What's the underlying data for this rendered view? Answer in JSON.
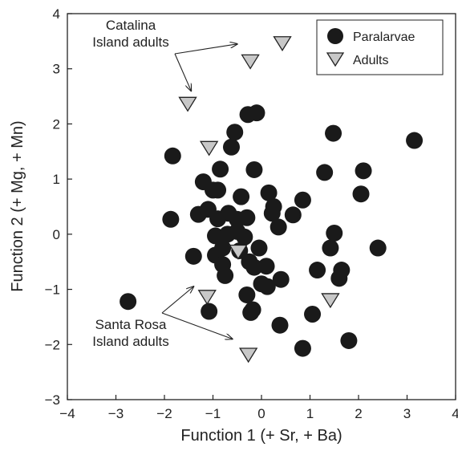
{
  "chart_data": {
    "type": "scatter",
    "title": "",
    "xlabel": "Function 1 (+ Sr, + Ba)",
    "ylabel": "Function 2 (+ Mg, + Mn)",
    "xlim": [
      -4,
      4
    ],
    "ylim": [
      -3,
      4
    ],
    "xticks": [
      "−4",
      "−3",
      "−2",
      "−1",
      "0",
      "1",
      "2",
      "3",
      "4"
    ],
    "yticks": [
      "−3",
      "−2",
      "−1",
      "0",
      "1",
      "2",
      "3",
      "4"
    ],
    "grid": false,
    "legend_position": "top-right",
    "series": [
      {
        "name": "Paralarvae",
        "marker": "circle",
        "color": "#1a1a1a",
        "points": [
          [
            -2.75,
            -1.22
          ],
          [
            -1.83,
            1.42
          ],
          [
            -1.87,
            0.27
          ],
          [
            -1.4,
            -0.4
          ],
          [
            -1.3,
            0.36
          ],
          [
            -1.2,
            0.95
          ],
          [
            -1.1,
            0.45
          ],
          [
            -1.08,
            -1.4
          ],
          [
            -1.0,
            0.8
          ],
          [
            -0.95,
            -0.03
          ],
          [
            -0.9,
            0.28
          ],
          [
            -0.9,
            0.8
          ],
          [
            -0.95,
            -0.38
          ],
          [
            -0.85,
            1.18
          ],
          [
            -0.8,
            -0.25
          ],
          [
            -0.8,
            -0.55
          ],
          [
            -0.75,
            -0.75
          ],
          [
            -0.7,
            0.0
          ],
          [
            -0.68,
            0.38
          ],
          [
            -0.62,
            1.58
          ],
          [
            -0.55,
            1.85
          ],
          [
            -0.5,
            0.05
          ],
          [
            -0.5,
            0.27
          ],
          [
            -0.45,
            -0.3
          ],
          [
            -0.42,
            0.68
          ],
          [
            -0.35,
            -0.05
          ],
          [
            -0.3,
            -1.1
          ],
          [
            -0.3,
            0.3
          ],
          [
            -0.28,
            2.17
          ],
          [
            -0.25,
            -0.5
          ],
          [
            -0.22,
            -1.42
          ],
          [
            -0.18,
            -1.37
          ],
          [
            -0.15,
            -0.6
          ],
          [
            -0.15,
            1.17
          ],
          [
            -0.1,
            2.2
          ],
          [
            -0.05,
            -0.25
          ],
          [
            0.0,
            -0.9
          ],
          [
            0.1,
            -0.58
          ],
          [
            0.15,
            0.75
          ],
          [
            0.12,
            -0.95
          ],
          [
            0.22,
            0.38
          ],
          [
            0.25,
            0.5
          ],
          [
            0.35,
            0.13
          ],
          [
            0.4,
            -0.82
          ],
          [
            0.38,
            -1.65
          ],
          [
            0.65,
            0.35
          ],
          [
            0.85,
            0.62
          ],
          [
            0.85,
            -2.07
          ],
          [
            1.05,
            -1.45
          ],
          [
            1.15,
            -0.65
          ],
          [
            1.3,
            1.12
          ],
          [
            1.42,
            -0.25
          ],
          [
            1.48,
            1.83
          ],
          [
            1.5,
            0.02
          ],
          [
            1.6,
            -0.8
          ],
          [
            1.65,
            -0.65
          ],
          [
            1.8,
            -1.93
          ],
          [
            2.05,
            0.73
          ],
          [
            2.1,
            1.15
          ],
          [
            2.4,
            -0.25
          ],
          [
            3.15,
            1.7
          ]
        ]
      },
      {
        "name": "Adults",
        "marker": "triangle-down",
        "color": "#c8c8c8",
        "points": [
          [
            -1.52,
            2.38
          ],
          [
            -1.08,
            1.58
          ],
          [
            -1.12,
            -1.12
          ],
          [
            -0.48,
            -0.3
          ],
          [
            -0.23,
            3.15
          ],
          [
            0.43,
            3.48
          ],
          [
            -0.27,
            -2.17
          ],
          [
            1.42,
            -1.18
          ]
        ]
      }
    ],
    "annotations": [
      {
        "lines": [
          "Catalina",
          "Island adults"
        ],
        "arrows_to": [
          [
            -0.5,
            3.45
          ],
          [
            -1.45,
            2.6
          ]
        ]
      },
      {
        "lines": [
          "Santa Rosa",
          "Island adults"
        ],
        "arrows_to": [
          [
            -1.4,
            -0.95
          ],
          [
            -0.6,
            -1.9
          ]
        ]
      }
    ]
  }
}
